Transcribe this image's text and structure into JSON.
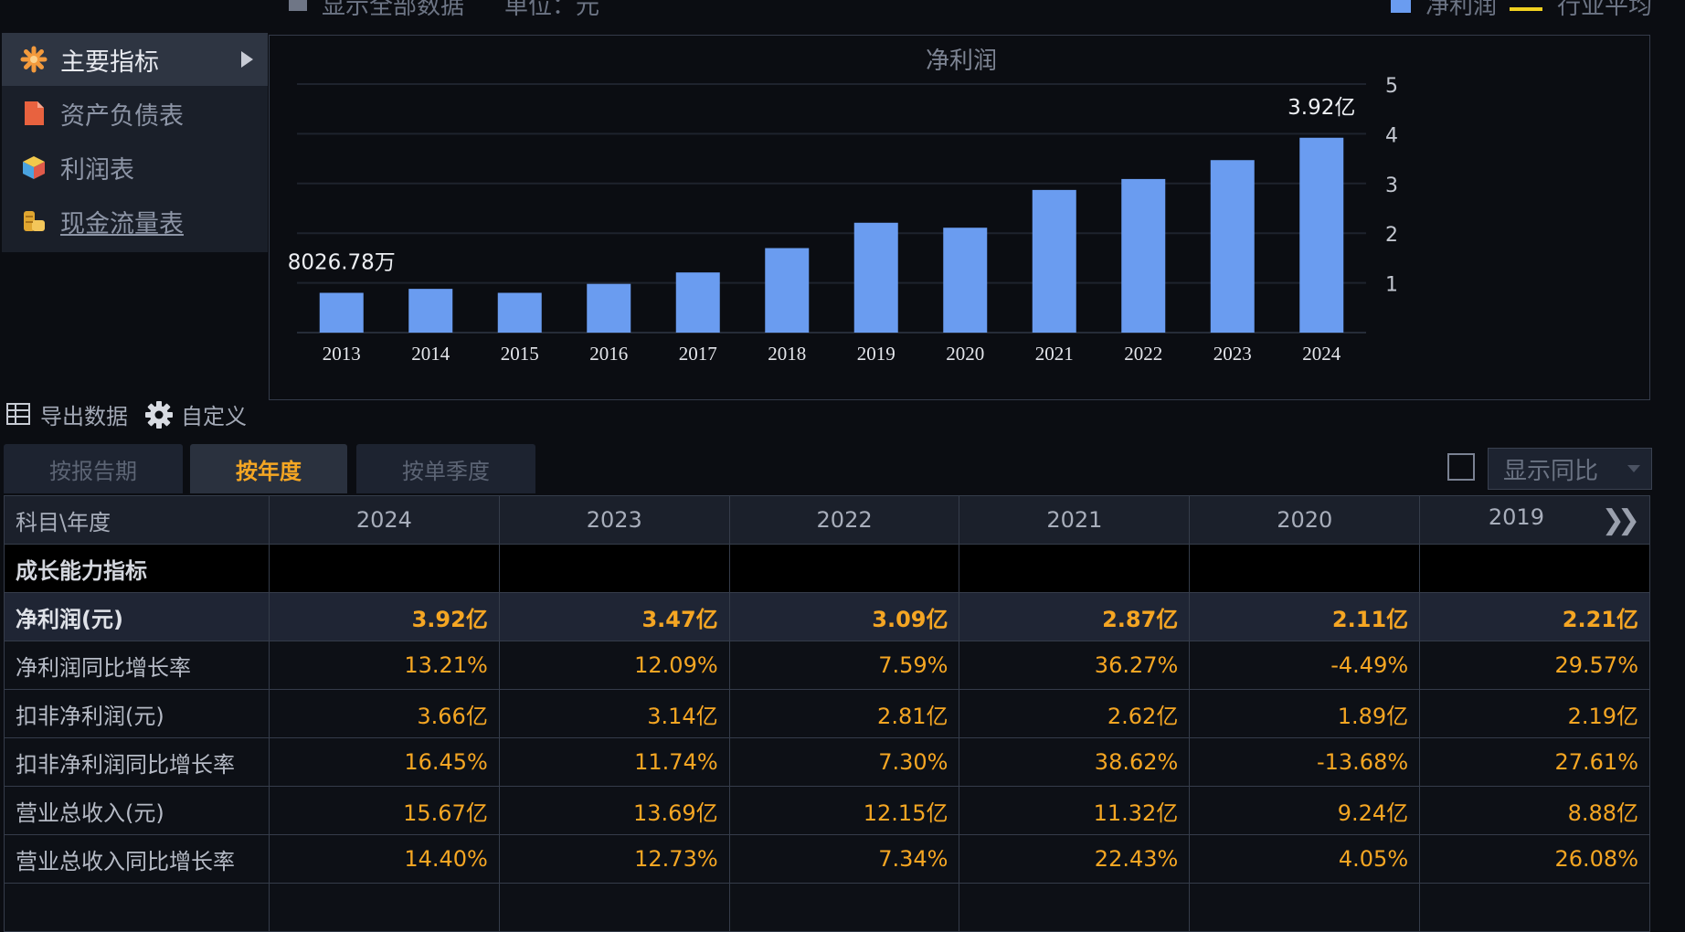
{
  "top_bar": {
    "show_all": "显示全部数据",
    "unit": "单位：元",
    "legend_bar": "净利润",
    "legend_line": "行业平均"
  },
  "nav": {
    "items": [
      {
        "label": "主要指标",
        "icon": "asterisk-icon",
        "active": true
      },
      {
        "label": "资产负债表",
        "icon": "document-icon",
        "active": false
      },
      {
        "label": "利润表",
        "icon": "cube-icon",
        "active": false
      },
      {
        "label": "现金流量表",
        "icon": "coins-icon",
        "active": false
      }
    ]
  },
  "chart_data": {
    "type": "bar",
    "title": "净利润",
    "categories": [
      "2013",
      "2014",
      "2015",
      "2016",
      "2017",
      "2018",
      "2019",
      "2020",
      "2021",
      "2022",
      "2023",
      "2024"
    ],
    "values": [
      0.8,
      0.88,
      0.8,
      0.98,
      1.21,
      1.7,
      2.21,
      2.11,
      2.87,
      3.09,
      3.47,
      3.92
    ],
    "value_unit": "亿",
    "ylim": [
      0,
      5
    ],
    "yticks": [
      1,
      2,
      3,
      4,
      5
    ],
    "grid": true,
    "bar_color": "#6a9cf0",
    "annotations": [
      {
        "index": 0,
        "text": "8026.78万"
      },
      {
        "index": 11,
        "text": "3.92亿"
      }
    ]
  },
  "toolbar": {
    "export": "导出数据",
    "custom": "自定义"
  },
  "tabs": [
    {
      "label": "按报告期",
      "active": false
    },
    {
      "label": "按年度",
      "active": true
    },
    {
      "label": "按单季度",
      "active": false
    }
  ],
  "yoy_select": "显示同比",
  "table": {
    "corner": "科目\\年度",
    "years": [
      "2024",
      "2023",
      "2022",
      "2021",
      "2020",
      "2019"
    ],
    "section": "成长能力指标",
    "rows": [
      {
        "label": "净利润(元)",
        "values": [
          "3.92亿",
          "3.47亿",
          "3.09亿",
          "2.87亿",
          "2.11亿",
          "2.21亿"
        ]
      },
      {
        "label": "净利润同比增长率",
        "values": [
          "13.21%",
          "12.09%",
          "7.59%",
          "36.27%",
          "-4.49%",
          "29.57%"
        ]
      },
      {
        "label": "扣非净利润(元)",
        "values": [
          "3.66亿",
          "3.14亿",
          "2.81亿",
          "2.62亿",
          "1.89亿",
          "2.19亿"
        ]
      },
      {
        "label": "扣非净利润同比增长率",
        "values": [
          "16.45%",
          "11.74%",
          "7.30%",
          "38.62%",
          "-13.68%",
          "27.61%"
        ]
      },
      {
        "label": "营业总收入(元)",
        "values": [
          "15.67亿",
          "13.69亿",
          "12.15亿",
          "11.32亿",
          "9.24亿",
          "8.88亿"
        ]
      },
      {
        "label": "营业总收入同比增长率",
        "values": [
          "14.40%",
          "12.73%",
          "7.34%",
          "22.43%",
          "4.05%",
          "26.08%"
        ]
      }
    ]
  },
  "colors": {
    "accent": "#f5a623",
    "bar": "#6a9cf0",
    "legend_line": "#f0d020"
  }
}
